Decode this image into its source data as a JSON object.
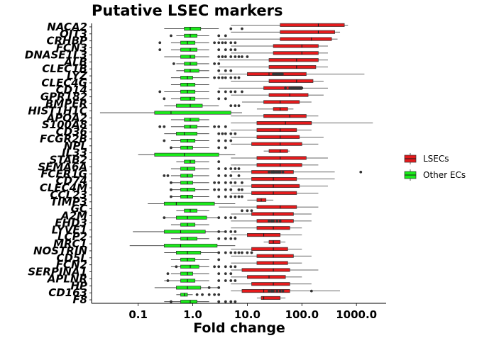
{
  "chart_data": {
    "type": "boxplot",
    "orientation": "horizontal",
    "title": "Putative LSEC markers",
    "xlabel": "Fold change",
    "ylabel": "",
    "xscale": "log10",
    "xlim": [
      0.014,
      3500
    ],
    "xticks": [
      0.1,
      1,
      10,
      100,
      1000
    ],
    "xtick_labels": [
      "0.1",
      "1.0",
      "10.0",
      "100.0",
      "1000.0"
    ],
    "grid": false,
    "legend": {
      "placement": "right",
      "entries": [
        {
          "label": "LSECs",
          "color": "#e41a1c"
        },
        {
          "label": "Other ECs",
          "color": "#1aeb1a"
        }
      ]
    },
    "categories": [
      "NACA2",
      "OIT3",
      "CRHBP",
      "FCN3",
      "DNASE1L3",
      "ALB",
      "CLEC1B",
      "LYZ",
      "CLEC4G",
      "CD14",
      "GPR182",
      "BMPER",
      "HIST1H1C",
      "APOA2",
      "S100A8",
      "CD36",
      "FCGR2B",
      "NPL",
      "IL33",
      "STAB2",
      "SEMA6A",
      "FCER1G",
      "CD74",
      "CLEC4M",
      "CCL23",
      "TIMP3",
      "GC",
      "A2M",
      "EHD3",
      "LYVE1",
      "LCP2",
      "MRC1",
      "NOSTRIN",
      "CD5L",
      "FCN2",
      "SERPINA1",
      "APLNR",
      "HP",
      "CD163",
      "F8"
    ],
    "series": [
      {
        "name": "LSECs",
        "stats": [
          {
            "min": 5,
            "q1": 40,
            "median": 200,
            "q3": 600,
            "max": 700
          },
          {
            "min": 5,
            "q1": 40,
            "median": 200,
            "q3": 400,
            "max": 500
          },
          {
            "min": 3,
            "q1": 40,
            "median": 150,
            "q3": 350,
            "max": 450
          },
          {
            "min": 5,
            "q1": 30,
            "median": 100,
            "q3": 200,
            "max": 300
          },
          {
            "min": 5,
            "q1": 30,
            "median": 100,
            "q3": 200,
            "max": 300
          },
          {
            "min": 3,
            "q1": 25,
            "median": 80,
            "q3": 200,
            "max": 300
          },
          {
            "min": 3,
            "q1": 25,
            "median": 80,
            "q3": 180,
            "max": 300
          },
          {
            "min": 3,
            "q1": 10,
            "median": 25,
            "q3": 120,
            "max": 1400
          },
          {
            "min": 5,
            "q1": 25,
            "median": 80,
            "q3": 160,
            "max": 250
          },
          {
            "min": 3,
            "q1": 20,
            "median": 50,
            "q3": 100,
            "max": 300
          },
          {
            "min": 5,
            "q1": 25,
            "median": 60,
            "q3": 130,
            "max": 250
          },
          {
            "min": 8,
            "q1": 20,
            "median": 40,
            "q3": 90,
            "max": 150
          },
          {
            "min": 15,
            "q1": 30,
            "median": 40,
            "q3": 55,
            "max": 70
          },
          {
            "min": 5,
            "q1": 20,
            "median": 60,
            "q3": 120,
            "max": 200
          },
          {
            "min": 5,
            "q1": 15,
            "median": 50,
            "q3": 150,
            "max": 2000
          },
          {
            "min": 5,
            "q1": 15,
            "median": 40,
            "q3": 80,
            "max": 150
          },
          {
            "min": 5,
            "q1": 15,
            "median": 40,
            "q3": 90,
            "max": 250
          },
          {
            "min": 5,
            "q1": 12,
            "median": 40,
            "q3": 100,
            "max": 200
          },
          {
            "min": 20,
            "q1": 25,
            "median": 40,
            "q3": 55,
            "max": 60
          },
          {
            "min": 5,
            "q1": 15,
            "median": 40,
            "q3": 120,
            "max": 300
          },
          {
            "min": 5,
            "q1": 15,
            "median": 40,
            "q3": 100,
            "max": 200
          },
          {
            "min": 5,
            "q1": 12,
            "median": 30,
            "q3": 70,
            "max": 400
          },
          {
            "min": 5,
            "q1": 12,
            "median": 30,
            "q3": 80,
            "max": 400
          },
          {
            "min": 5,
            "q1": 12,
            "median": 30,
            "q3": 90,
            "max": 300
          },
          {
            "min": 5,
            "q1": 12,
            "median": 30,
            "q3": 80,
            "max": 200
          },
          {
            "min": 10,
            "q1": 15,
            "median": 18,
            "q3": 22,
            "max": 30
          },
          {
            "min": 3,
            "q1": 15,
            "median": 40,
            "q3": 80,
            "max": 200
          },
          {
            "min": 5,
            "q1": 12,
            "median": 30,
            "q3": 70,
            "max": 150
          },
          {
            "min": 5,
            "q1": 15,
            "median": 40,
            "q3": 70,
            "max": 150
          },
          {
            "min": 5,
            "q1": 15,
            "median": 30,
            "q3": 60,
            "max": 100
          },
          {
            "min": 5,
            "q1": 10,
            "median": 20,
            "q3": 40,
            "max": 100
          },
          {
            "min": 20,
            "q1": 25,
            "median": 30,
            "q3": 40,
            "max": 50
          },
          {
            "min": 5,
            "q1": 12,
            "median": 30,
            "q3": 55,
            "max": 100
          },
          {
            "min": 5,
            "q1": 15,
            "median": 30,
            "q3": 70,
            "max": 150
          },
          {
            "min": 5,
            "q1": 15,
            "median": 30,
            "q3": 55,
            "max": 100
          },
          {
            "min": 5,
            "q1": 8,
            "median": 30,
            "q3": 60,
            "max": 200
          },
          {
            "min": 5,
            "q1": 10,
            "median": 25,
            "q3": 50,
            "max": 100
          },
          {
            "min": 5,
            "q1": 12,
            "median": 30,
            "q3": 60,
            "max": 150
          },
          {
            "min": 5,
            "q1": 8,
            "median": 20,
            "q3": 60,
            "max": 500
          },
          {
            "min": 15,
            "q1": 18,
            "median": 20,
            "q3": 40,
            "max": 50
          }
        ],
        "outliers": [
          [],
          [],
          [],
          [],
          [],
          [],
          [],
          [
            30,
            32,
            34,
            36,
            38,
            40,
            42,
            44
          ],
          [],
          [
            50,
            60,
            65,
            70,
            75,
            80,
            85,
            90,
            95,
            100
          ],
          [],
          [],
          [],
          [],
          [],
          [],
          [],
          [],
          [],
          [],
          [],
          [
            25,
            28,
            30,
            32,
            35,
            38,
            40,
            45,
            1200
          ],
          [],
          [],
          [],
          [],
          [],
          [],
          [
            25,
            28,
            30,
            35,
            40
          ],
          [],
          [],
          [],
          [],
          [],
          [],
          [],
          [],
          [],
          [
            25,
            28,
            30,
            35,
            40,
            45,
            150
          ],
          []
        ]
      },
      {
        "name": "Other ECs",
        "stats": [
          {
            "min": 0.3,
            "q1": 0.7,
            "median": 0.9,
            "q3": 1.4,
            "max": 3
          },
          {
            "min": 0.5,
            "q1": 0.7,
            "median": 0.9,
            "q3": 1.2,
            "max": 2
          },
          {
            "min": 0.4,
            "q1": 0.6,
            "median": 0.8,
            "q3": 1.1,
            "max": 2
          },
          {
            "min": 0.4,
            "q1": 0.6,
            "median": 0.9,
            "q3": 1.2,
            "max": 2
          },
          {
            "min": 0.3,
            "q1": 0.6,
            "median": 0.9,
            "q3": 1.1,
            "max": 2
          },
          {
            "min": 0.5,
            "q1": 0.7,
            "median": 0.9,
            "q3": 1.2,
            "max": 2
          },
          {
            "min": 0.5,
            "q1": 0.7,
            "median": 0.9,
            "q3": 1.3,
            "max": 2
          },
          {
            "min": 0.4,
            "q1": 0.6,
            "median": 0.8,
            "q3": 1.0,
            "max": 2
          },
          {
            "min": 0.4,
            "q1": 0.6,
            "median": 0.8,
            "q3": 1.1,
            "max": 2
          },
          {
            "min": 0.3,
            "q1": 0.6,
            "median": 0.8,
            "q3": 1.1,
            "max": 2
          },
          {
            "min": 0.4,
            "q1": 0.6,
            "median": 0.9,
            "q3": 1.1,
            "max": 2
          },
          {
            "min": 0.3,
            "q1": 0.5,
            "median": 0.9,
            "q3": 1.5,
            "max": 3
          },
          {
            "min": 0.02,
            "q1": 0.2,
            "median": 0.4,
            "q3": 5,
            "max": 8
          },
          {
            "min": 0.4,
            "q1": 0.7,
            "median": 0.9,
            "q3": 1.3,
            "max": 2
          },
          {
            "min": 0.4,
            "q1": 0.7,
            "median": 0.9,
            "q3": 1.2,
            "max": 2
          },
          {
            "min": 0.3,
            "q1": 0.5,
            "median": 0.7,
            "q3": 1.2,
            "max": 2
          },
          {
            "min": 0.4,
            "q1": 0.6,
            "median": 0.8,
            "q3": 1.1,
            "max": 2
          },
          {
            "min": 0.4,
            "q1": 0.6,
            "median": 0.8,
            "q3": 1.0,
            "max": 2
          },
          {
            "min": 0.1,
            "q1": 0.2,
            "median": 0.7,
            "q3": 3,
            "max": 6
          },
          {
            "min": 0.5,
            "q1": 0.7,
            "median": 0.9,
            "q3": 1.1,
            "max": 2
          },
          {
            "min": 0.4,
            "q1": 0.6,
            "median": 0.8,
            "q3": 1.1,
            "max": 2
          },
          {
            "min": 0.4,
            "q1": 0.6,
            "median": 0.8,
            "q3": 1.0,
            "max": 2
          },
          {
            "min": 0.4,
            "q1": 0.6,
            "median": 0.8,
            "q3": 1.0,
            "max": 2
          },
          {
            "min": 0.4,
            "q1": 0.6,
            "median": 0.8,
            "q3": 1.1,
            "max": 2
          },
          {
            "min": 0.4,
            "q1": 0.6,
            "median": 0.8,
            "q3": 1.0,
            "max": 2
          },
          {
            "min": 0.15,
            "q1": 0.3,
            "median": 0.5,
            "q3": 2.5,
            "max": 6
          },
          {
            "min": 0.5,
            "q1": 0.7,
            "median": 0.9,
            "q3": 1.2,
            "max": 2
          },
          {
            "min": 0.3,
            "q1": 0.5,
            "median": 0.8,
            "q3": 1.8,
            "max": 3
          },
          {
            "min": 0.4,
            "q1": 0.6,
            "median": 0.8,
            "q3": 1.1,
            "max": 2
          },
          {
            "min": 0.08,
            "q1": 0.3,
            "median": 0.6,
            "q3": 1.7,
            "max": 4
          },
          {
            "min": 0.4,
            "q1": 0.6,
            "median": 0.8,
            "q3": 1.2,
            "max": 2
          },
          {
            "min": 0.07,
            "q1": 0.3,
            "median": 0.6,
            "q3": 2.8,
            "max": 6
          },
          {
            "min": 0.3,
            "q1": 0.5,
            "median": 0.8,
            "q3": 1.4,
            "max": 3
          },
          {
            "min": 0.4,
            "q1": 0.6,
            "median": 0.8,
            "q3": 1.1,
            "max": 2
          },
          {
            "min": 0.4,
            "q1": 0.6,
            "median": 0.9,
            "q3": 1.3,
            "max": 2
          },
          {
            "min": 0.4,
            "q1": 0.6,
            "median": 0.8,
            "q3": 1.0,
            "max": 2
          },
          {
            "min": 0.3,
            "q1": 0.6,
            "median": 0.8,
            "q3": 1.1,
            "max": 2
          },
          {
            "min": 0.2,
            "q1": 0.5,
            "median": 0.8,
            "q3": 1.4,
            "max": 3
          },
          {
            "min": 0.5,
            "q1": 0.6,
            "median": 0.7,
            "q3": 0.8,
            "max": 1
          },
          {
            "min": 0.3,
            "q1": 0.6,
            "median": 0.9,
            "q3": 1.2,
            "max": 2
          }
        ],
        "outliers": [
          [
            5,
            8
          ],
          [
            0.4,
            3,
            4
          ],
          [
            0.25,
            2.5,
            3,
            3.5,
            4,
            5,
            6
          ],
          [
            0.25,
            3,
            4,
            5,
            6
          ],
          [
            3,
            3.5,
            4,
            5,
            6,
            7,
            8,
            10
          ],
          [
            0.45,
            2.5,
            3
          ],
          [
            3,
            4,
            5
          ],
          [
            2.5,
            3,
            3.5,
            4,
            5,
            6,
            7
          ],
          [],
          [
            0.25,
            3,
            4,
            5,
            6,
            8
          ],
          [
            0.3,
            3,
            4
          ],
          [
            5,
            6,
            7
          ],
          [],
          [],
          [
            0.25,
            0.3,
            2.5,
            3,
            4
          ],
          [
            3,
            3.5,
            4,
            5,
            6
          ],
          [
            0.3,
            3,
            4,
            5
          ],
          [
            0.4,
            3,
            4
          ],
          [],
          [
            3
          ],
          [
            3,
            4,
            5,
            6,
            7
          ],
          [
            0.3,
            0.35,
            3,
            4,
            5,
            7
          ],
          [
            0.4,
            2.5,
            3,
            4,
            5,
            6,
            8
          ],
          [
            0.4,
            2.5,
            3,
            4,
            5,
            7,
            8
          ],
          [
            0.4,
            3,
            4,
            5,
            6,
            7,
            8
          ],
          [],
          [
            8,
            10,
            12
          ],
          [
            0.3,
            3,
            4,
            5,
            6
          ],
          [],
          [
            3,
            4,
            5,
            6
          ],
          [
            3,
            4,
            5,
            6
          ],
          [],
          [
            3,
            4,
            5,
            6,
            7,
            8,
            10,
            12
          ],
          [
            3
          ],
          [
            0.5,
            2.5,
            3,
            4,
            5,
            6
          ],
          [
            0.35,
            3,
            4,
            5
          ],
          [
            0.35,
            3,
            4,
            5,
            6
          ],
          [
            2,
            3
          ],
          [
            1.2,
            1.5,
            2,
            2.5,
            3
          ],
          [
            0.4,
            3,
            4,
            5,
            6
          ]
        ]
      }
    ]
  }
}
